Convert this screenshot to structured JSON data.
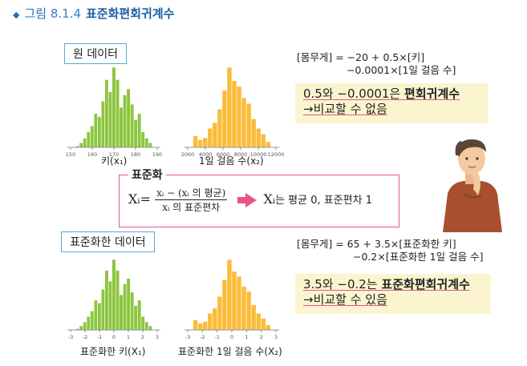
{
  "title": {
    "marker": "◆",
    "label": "그림",
    "number": "8.1.4",
    "name": "표준화편회귀계수"
  },
  "raw": {
    "tag": "원 데이터",
    "chart_height": {
      "type": "bar",
      "xlabel": "키(x₁)",
      "ticks": [
        "150",
        "160",
        "170",
        "180",
        "190"
      ],
      "xlim": [
        150,
        190
      ],
      "color": "#8cc63f",
      "values": [
        1,
        3,
        6,
        10,
        14,
        22,
        20,
        30,
        44,
        36,
        52,
        44,
        26,
        34,
        38,
        28,
        18,
        22,
        10,
        6,
        3
      ]
    },
    "chart_steps": {
      "type": "bar",
      "xlabel": "1일 걸음 수(x₂)",
      "ticks": [
        "2000",
        "4000",
        "6000",
        "8000",
        "10000",
        "12000"
      ],
      "xlim": [
        1000,
        12000
      ],
      "color": "#fbbc3b",
      "values": [
        12,
        8,
        10,
        20,
        26,
        40,
        60,
        84,
        70,
        64,
        52,
        46,
        30,
        20,
        14,
        6
      ]
    },
    "formula_line1": "[몸무게] = −20 + 0.5×[키]",
    "formula_line2": "−0.0001×[1일 걸음 수]",
    "conclusion_pre": "0.5와 −0.0001은 ",
    "conclusion_bold": "편회귀계수",
    "conclusion_line2": "→비교할 수 없음"
  },
  "standardization": {
    "title": "표준화",
    "lhs": "Xᵢ=",
    "numerator": "xᵢ − (xᵢ 의 평균)",
    "denominator": "xᵢ 의 표준편차",
    "result_var": "Xᵢ",
    "result_text": "는 평균 0, 표준편차 1"
  },
  "std": {
    "tag": "표준화한 데이터",
    "chart_height": {
      "type": "bar",
      "xlabel": "표준화한 키(X₁)",
      "ticks": [
        "-3",
        "-2",
        "-1",
        "0",
        "1",
        "2",
        "3"
      ],
      "xlim": [
        -3,
        3
      ],
      "color": "#8cc63f",
      "values": [
        1,
        3,
        6,
        10,
        14,
        22,
        20,
        30,
        44,
        36,
        52,
        44,
        26,
        34,
        38,
        28,
        18,
        22,
        10,
        6,
        3
      ]
    },
    "chart_steps": {
      "type": "bar",
      "xlabel": "표준화한 1일 걸음 수(X₂)",
      "ticks": [
        "-3",
        "-2",
        "-1",
        "0",
        "1",
        "2",
        "3"
      ],
      "xlim": [
        -3,
        3
      ],
      "color": "#fbbc3b",
      "values": [
        12,
        8,
        10,
        20,
        26,
        40,
        60,
        84,
        70,
        64,
        52,
        46,
        30,
        20,
        14,
        6
      ]
    },
    "formula_line1": "[몸무게] = 65 + 3.5×[표준화한 키]",
    "formula_line2": "−0.2×[표준화한 1일 걸음 수]",
    "conclusion_pre": "3.5와 −0.2는 ",
    "conclusion_bold": "표준화편회귀계수",
    "conclusion_line2": "→비교할 수 있음"
  },
  "person": {
    "icon": "thinking-person-icon"
  }
}
